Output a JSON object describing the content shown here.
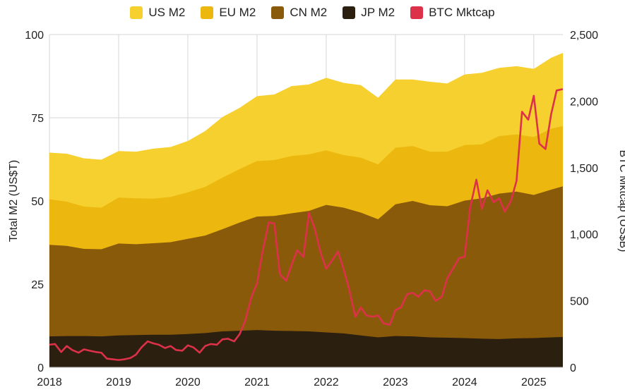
{
  "chart_data": {
    "type": "area",
    "title": "",
    "legend_position": "top",
    "grid": true,
    "xlabel": "",
    "x_ticks": [
      "2018",
      "2019",
      "2020",
      "2021",
      "2022",
      "2023",
      "2024",
      "2025"
    ],
    "y_left": {
      "label": "Total M2 (US$T)",
      "lim": [
        0,
        100
      ],
      "ticks": [
        "0",
        "25",
        "50",
        "75",
        "100"
      ]
    },
    "y_right": {
      "label": "BTC Mktcap (US$B)",
      "lim": [
        0,
        2500
      ],
      "ticks": [
        "0",
        "500",
        "1,000",
        "1,500",
        "2,000",
        "2,500"
      ]
    },
    "x": [
      2018.0,
      2018.25,
      2018.5,
      2018.75,
      2019.0,
      2019.25,
      2019.5,
      2019.75,
      2020.0,
      2020.25,
      2020.5,
      2020.75,
      2021.0,
      2021.25,
      2021.5,
      2021.75,
      2022.0,
      2022.25,
      2022.5,
      2022.75,
      2023.0,
      2023.25,
      2023.5,
      2023.75,
      2024.0,
      2024.25,
      2024.5,
      2024.75,
      2025.0,
      2025.25,
      2025.42
    ],
    "series": [
      {
        "name": "JP M2",
        "color": "#2b1f10",
        "values": [
          9.3,
          9.4,
          9.4,
          9.3,
          9.6,
          9.7,
          9.8,
          9.8,
          10.0,
          10.3,
          10.8,
          11.0,
          11.2,
          11.0,
          10.9,
          10.8,
          10.5,
          10.2,
          9.6,
          9.0,
          9.4,
          9.3,
          9.0,
          8.9,
          8.8,
          8.6,
          8.5,
          8.7,
          8.8,
          9.0,
          9.1
        ]
      },
      {
        "name": "CN M2",
        "color": "#8a5a0b",
        "values": [
          36.8,
          36.5,
          35.6,
          35.5,
          37.2,
          37.0,
          37.3,
          37.6,
          38.6,
          39.6,
          41.5,
          43.5,
          45.3,
          45.5,
          46.3,
          47.0,
          48.8,
          48.0,
          46.5,
          44.5,
          49.0,
          50.0,
          48.7,
          48.4,
          50.1,
          50.8,
          52.2,
          52.8,
          51.8,
          53.4,
          54.4
        ]
      },
      {
        "name": "EU M2",
        "color": "#ecb80f",
        "values": [
          50.5,
          49.8,
          48.3,
          48.0,
          51.0,
          50.8,
          50.7,
          51.2,
          52.6,
          54.2,
          57.0,
          59.6,
          62.0,
          62.3,
          63.5,
          64.0,
          65.2,
          63.8,
          63.0,
          61.0,
          66.0,
          66.5,
          64.8,
          64.8,
          66.8,
          67.0,
          69.5,
          70.0,
          69.2,
          71.7,
          72.5
        ]
      },
      {
        "name": "US M2",
        "color": "#f6d02f",
        "values": [
          64.5,
          64.2,
          62.8,
          62.4,
          65.0,
          64.8,
          65.7,
          66.2,
          68.0,
          71.0,
          75.2,
          78.0,
          81.5,
          82.0,
          84.5,
          85.0,
          87.0,
          85.5,
          84.8,
          81.0,
          86.5,
          86.5,
          85.8,
          85.3,
          88.0,
          88.5,
          90.0,
          90.5,
          89.7,
          93.0,
          94.5
        ]
      }
    ],
    "line_series": {
      "name": "BTC Mktcap",
      "color": "#dc3149",
      "axis": "right",
      "x": [
        2018.0,
        2018.08,
        2018.17,
        2018.25,
        2018.33,
        2018.42,
        2018.5,
        2018.58,
        2018.67,
        2018.75,
        2018.83,
        2018.92,
        2019.0,
        2019.08,
        2019.17,
        2019.25,
        2019.33,
        2019.42,
        2019.5,
        2019.58,
        2019.67,
        2019.75,
        2019.83,
        2019.92,
        2020.0,
        2020.08,
        2020.17,
        2020.25,
        2020.33,
        2020.42,
        2020.5,
        2020.58,
        2020.67,
        2020.75,
        2020.83,
        2020.92,
        2021.0,
        2021.08,
        2021.17,
        2021.25,
        2021.33,
        2021.42,
        2021.5,
        2021.58,
        2021.67,
        2021.75,
        2021.83,
        2021.92,
        2022.0,
        2022.08,
        2022.17,
        2022.25,
        2022.33,
        2022.42,
        2022.5,
        2022.58,
        2022.67,
        2022.75,
        2022.83,
        2022.92,
        2023.0,
        2023.08,
        2023.17,
        2023.25,
        2023.33,
        2023.42,
        2023.5,
        2023.58,
        2023.67,
        2023.75,
        2023.83,
        2023.92,
        2024.0,
        2024.08,
        2024.17,
        2024.25,
        2024.33,
        2024.42,
        2024.5,
        2024.58,
        2024.67,
        2024.75,
        2024.83,
        2024.92,
        2025.0,
        2025.08,
        2025.17,
        2025.25,
        2025.33,
        2025.42
      ],
      "values": [
        170,
        175,
        115,
        160,
        130,
        110,
        135,
        125,
        115,
        110,
        65,
        60,
        55,
        60,
        70,
        95,
        150,
        195,
        180,
        170,
        145,
        160,
        130,
        125,
        165,
        150,
        110,
        160,
        175,
        170,
        210,
        215,
        195,
        250,
        350,
        530,
        630,
        870,
        1090,
        1080,
        700,
        650,
        770,
        880,
        830,
        1160,
        1050,
        860,
        740,
        800,
        870,
        740,
        590,
        380,
        450,
        390,
        380,
        390,
        330,
        320,
        430,
        450,
        550,
        560,
        530,
        580,
        570,
        500,
        530,
        670,
        740,
        820,
        830,
        1200,
        1410,
        1190,
        1330,
        1240,
        1270,
        1170,
        1250,
        1400,
        1920,
        1860,
        2040,
        1680,
        1640,
        1900,
        2080,
        2090
      ]
    }
  }
}
